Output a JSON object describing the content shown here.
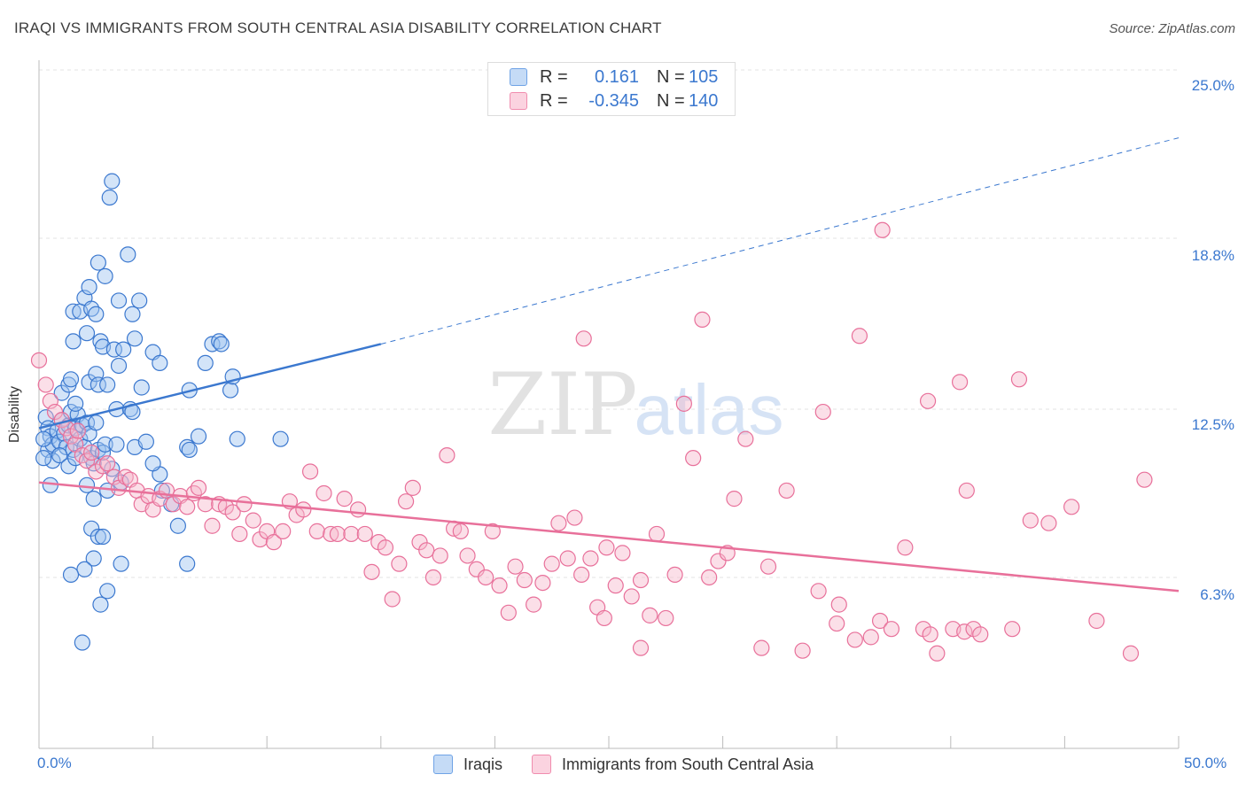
{
  "title": "IRAQI VS IMMIGRANTS FROM SOUTH CENTRAL ASIA DISABILITY CORRELATION CHART",
  "source": "Source: ZipAtlas.com",
  "watermark": {
    "zip": "ZIP",
    "atlas": "atlas"
  },
  "legend": {
    "r_label": "R =",
    "n_label": "N =",
    "rows": [
      {
        "r": "0.161",
        "n": "105",
        "color": "#6fa3e6"
      },
      {
        "r": "-0.345",
        "n": "140",
        "color": "#f08cae"
      }
    ]
  },
  "colors": {
    "blue": "#3b78cf",
    "blue_fill": "#9ec3ef",
    "pink": "#e8709a",
    "pink_fill": "#f6b9cd"
  },
  "chart_data": {
    "type": "scatter",
    "xlabel": "",
    "ylabel": "Disability",
    "x_tick_labels": [
      "0.0%",
      "50.0%"
    ],
    "y_tick_labels": [
      "25.0%",
      "18.8%",
      "12.5%",
      "6.3%"
    ],
    "y_ticks": [
      25.0,
      18.8,
      12.5,
      6.3
    ],
    "xlim": [
      0,
      50
    ],
    "ylim": [
      0,
      25
    ],
    "grid": true,
    "series": [
      {
        "name": "Iraqis",
        "trend": {
          "x0": 0,
          "y0": 11.8,
          "x1": 15,
          "y1": 14.9,
          "dashed_to_x": 50,
          "dashed_to_y": 22.5
        },
        "points": [
          [
            0.3,
            12.2
          ],
          [
            0.4,
            11.8
          ],
          [
            0.5,
            11.5
          ],
          [
            0.4,
            11.0
          ],
          [
            0.6,
            11.2
          ],
          [
            0.8,
            11.7
          ],
          [
            0.9,
            11.3
          ],
          [
            1.0,
            12.1
          ],
          [
            1.1,
            11.6
          ],
          [
            1.2,
            11.1
          ],
          [
            1.3,
            11.9
          ],
          [
            1.4,
            12.4
          ],
          [
            1.5,
            11.0
          ],
          [
            1.6,
            11.8
          ],
          [
            1.7,
            12.3
          ],
          [
            1.8,
            11.4
          ],
          [
            1.9,
            11.9
          ],
          [
            2.0,
            11.1
          ],
          [
            2.1,
            12.0
          ],
          [
            2.2,
            11.6
          ],
          [
            0.6,
            10.6
          ],
          [
            0.9,
            10.8
          ],
          [
            1.3,
            10.4
          ],
          [
            1.6,
            10.7
          ],
          [
            2.3,
            10.7
          ],
          [
            2.4,
            10.5
          ],
          [
            2.6,
            11.0
          ],
          [
            2.8,
            10.9
          ],
          [
            2.5,
            12.0
          ],
          [
            2.9,
            11.2
          ],
          [
            3.2,
            10.3
          ],
          [
            1.0,
            13.1
          ],
          [
            1.3,
            13.4
          ],
          [
            1.4,
            13.6
          ],
          [
            1.6,
            12.7
          ],
          [
            2.2,
            13.5
          ],
          [
            2.5,
            13.8
          ],
          [
            2.6,
            13.4
          ],
          [
            3.0,
            13.4
          ],
          [
            1.5,
            15.0
          ],
          [
            2.1,
            15.3
          ],
          [
            2.7,
            15.0
          ],
          [
            2.8,
            14.8
          ],
          [
            1.5,
            16.1
          ],
          [
            1.8,
            16.1
          ],
          [
            2.0,
            16.6
          ],
          [
            2.2,
            17.0
          ],
          [
            2.3,
            16.2
          ],
          [
            2.5,
            16.0
          ],
          [
            3.3,
            14.7
          ],
          [
            3.5,
            14.1
          ],
          [
            3.7,
            14.7
          ],
          [
            4.2,
            15.1
          ],
          [
            3.5,
            16.5
          ],
          [
            4.4,
            16.5
          ],
          [
            4.1,
            16.0
          ],
          [
            2.9,
            17.4
          ],
          [
            2.6,
            17.9
          ],
          [
            3.9,
            18.2
          ],
          [
            3.1,
            20.3
          ],
          [
            3.2,
            20.9
          ],
          [
            3.4,
            12.5
          ],
          [
            4.0,
            12.5
          ],
          [
            4.1,
            12.4
          ],
          [
            4.5,
            13.3
          ],
          [
            5.0,
            14.6
          ],
          [
            5.3,
            14.2
          ],
          [
            6.6,
            13.2
          ],
          [
            7.3,
            14.2
          ],
          [
            7.6,
            14.9
          ],
          [
            7.9,
            15.0
          ],
          [
            8.0,
            14.9
          ],
          [
            8.4,
            13.2
          ],
          [
            8.5,
            13.7
          ],
          [
            3.4,
            11.2
          ],
          [
            4.2,
            11.1
          ],
          [
            4.7,
            11.3
          ],
          [
            5.3,
            10.1
          ],
          [
            6.5,
            11.1
          ],
          [
            6.6,
            11.0
          ],
          [
            5.0,
            10.5
          ],
          [
            7.0,
            11.5
          ],
          [
            8.7,
            11.4
          ],
          [
            10.6,
            11.4
          ],
          [
            2.1,
            9.7
          ],
          [
            2.4,
            9.2
          ],
          [
            3.0,
            9.5
          ],
          [
            3.6,
            9.8
          ],
          [
            2.3,
            8.1
          ],
          [
            2.6,
            7.8
          ],
          [
            2.8,
            7.8
          ],
          [
            2.4,
            7.0
          ],
          [
            2.0,
            6.6
          ],
          [
            1.4,
            6.4
          ],
          [
            3.6,
            6.8
          ],
          [
            2.7,
            5.3
          ],
          [
            6.5,
            6.8
          ],
          [
            3.0,
            5.8
          ],
          [
            1.9,
            3.9
          ],
          [
            0.5,
            9.7
          ],
          [
            0.2,
            11.4
          ],
          [
            0.2,
            10.7
          ],
          [
            5.4,
            9.5
          ],
          [
            6.1,
            8.2
          ],
          [
            5.8,
            9.0
          ]
        ]
      },
      {
        "name": "Immigrants from South Central Asia",
        "trend": {
          "x0": 0,
          "y0": 9.8,
          "x1": 50,
          "y1": 5.8
        },
        "points": [
          [
            0.0,
            14.3
          ],
          [
            0.3,
            13.4
          ],
          [
            0.5,
            12.8
          ],
          [
            0.7,
            12.4
          ],
          [
            1.0,
            12.1
          ],
          [
            1.2,
            11.8
          ],
          [
            1.4,
            11.5
          ],
          [
            1.6,
            11.2
          ],
          [
            1.7,
            11.7
          ],
          [
            1.9,
            10.8
          ],
          [
            2.1,
            10.6
          ],
          [
            2.3,
            10.9
          ],
          [
            2.5,
            10.2
          ],
          [
            2.8,
            10.4
          ],
          [
            3.0,
            10.5
          ],
          [
            3.3,
            10.0
          ],
          [
            3.5,
            9.6
          ],
          [
            3.8,
            10.0
          ],
          [
            4.0,
            9.9
          ],
          [
            4.3,
            9.5
          ],
          [
            4.5,
            9.0
          ],
          [
            4.8,
            9.3
          ],
          [
            5.0,
            8.8
          ],
          [
            5.3,
            9.2
          ],
          [
            5.6,
            9.5
          ],
          [
            5.9,
            9.0
          ],
          [
            6.2,
            9.3
          ],
          [
            6.5,
            8.9
          ],
          [
            6.8,
            9.4
          ],
          [
            7.0,
            9.6
          ],
          [
            7.3,
            9.0
          ],
          [
            7.6,
            8.2
          ],
          [
            7.9,
            9.0
          ],
          [
            8.2,
            8.9
          ],
          [
            8.5,
            8.7
          ],
          [
            8.8,
            7.9
          ],
          [
            9.0,
            9.0
          ],
          [
            9.4,
            8.4
          ],
          [
            9.7,
            7.7
          ],
          [
            10.0,
            8.0
          ],
          [
            10.3,
            7.6
          ],
          [
            10.7,
            8.0
          ],
          [
            11.0,
            9.1
          ],
          [
            11.3,
            8.6
          ],
          [
            11.6,
            8.8
          ],
          [
            11.9,
            10.2
          ],
          [
            12.2,
            8.0
          ],
          [
            12.5,
            9.4
          ],
          [
            12.8,
            7.9
          ],
          [
            13.1,
            7.9
          ],
          [
            13.4,
            9.2
          ],
          [
            13.7,
            7.9
          ],
          [
            14.0,
            8.8
          ],
          [
            14.3,
            7.9
          ],
          [
            14.6,
            6.5
          ],
          [
            14.9,
            7.6
          ],
          [
            15.2,
            7.4
          ],
          [
            15.5,
            5.5
          ],
          [
            15.8,
            6.8
          ],
          [
            16.1,
            9.1
          ],
          [
            16.4,
            9.6
          ],
          [
            16.7,
            7.6
          ],
          [
            17.0,
            7.3
          ],
          [
            17.3,
            6.3
          ],
          [
            17.6,
            7.1
          ],
          [
            17.9,
            10.8
          ],
          [
            18.2,
            8.1
          ],
          [
            18.5,
            8.0
          ],
          [
            18.8,
            7.1
          ],
          [
            19.2,
            6.6
          ],
          [
            19.6,
            6.3
          ],
          [
            19.9,
            8.0
          ],
          [
            20.2,
            6.0
          ],
          [
            20.6,
            5.0
          ],
          [
            20.9,
            6.7
          ],
          [
            21.3,
            6.2
          ],
          [
            21.7,
            5.3
          ],
          [
            22.1,
            6.1
          ],
          [
            22.5,
            6.8
          ],
          [
            22.8,
            8.3
          ],
          [
            23.2,
            7.0
          ],
          [
            23.5,
            8.5
          ],
          [
            23.8,
            6.4
          ],
          [
            24.2,
            7.0
          ],
          [
            24.5,
            5.2
          ],
          [
            24.9,
            7.4
          ],
          [
            25.3,
            6.0
          ],
          [
            25.6,
            7.2
          ],
          [
            26.0,
            5.6
          ],
          [
            26.4,
            6.2
          ],
          [
            26.8,
            4.9
          ],
          [
            27.1,
            7.9
          ],
          [
            27.5,
            4.8
          ],
          [
            27.9,
            6.4
          ],
          [
            28.3,
            12.7
          ],
          [
            28.7,
            10.7
          ],
          [
            29.1,
            15.8
          ],
          [
            29.4,
            6.3
          ],
          [
            29.8,
            6.9
          ],
          [
            30.2,
            7.2
          ],
          [
            31.0,
            11.4
          ],
          [
            32.0,
            6.7
          ],
          [
            32.8,
            9.5
          ],
          [
            33.5,
            3.6
          ],
          [
            34.2,
            5.8
          ],
          [
            35.0,
            4.6
          ],
          [
            35.8,
            4.0
          ],
          [
            36.5,
            4.1
          ],
          [
            36.9,
            4.7
          ],
          [
            37.4,
            4.4
          ],
          [
            38.0,
            7.4
          ],
          [
            38.8,
            4.4
          ],
          [
            39.1,
            4.2
          ],
          [
            39.4,
            3.5
          ],
          [
            40.1,
            4.4
          ],
          [
            40.6,
            4.3
          ],
          [
            41.0,
            4.4
          ],
          [
            41.3,
            4.2
          ],
          [
            39.0,
            12.8
          ],
          [
            40.4,
            13.5
          ],
          [
            40.7,
            9.5
          ],
          [
            42.7,
            4.4
          ],
          [
            43.5,
            8.4
          ],
          [
            45.3,
            8.9
          ],
          [
            36.0,
            15.2
          ],
          [
            37.0,
            19.1
          ],
          [
            43.0,
            13.6
          ],
          [
            44.3,
            8.3
          ],
          [
            46.4,
            4.7
          ],
          [
            47.9,
            3.5
          ],
          [
            48.5,
            9.9
          ],
          [
            30.5,
            9.2
          ],
          [
            24.8,
            4.8
          ],
          [
            23.9,
            15.1
          ],
          [
            34.4,
            12.4
          ],
          [
            35.1,
            5.3
          ],
          [
            31.7,
            3.7
          ],
          [
            26.4,
            3.7
          ]
        ]
      }
    ]
  }
}
